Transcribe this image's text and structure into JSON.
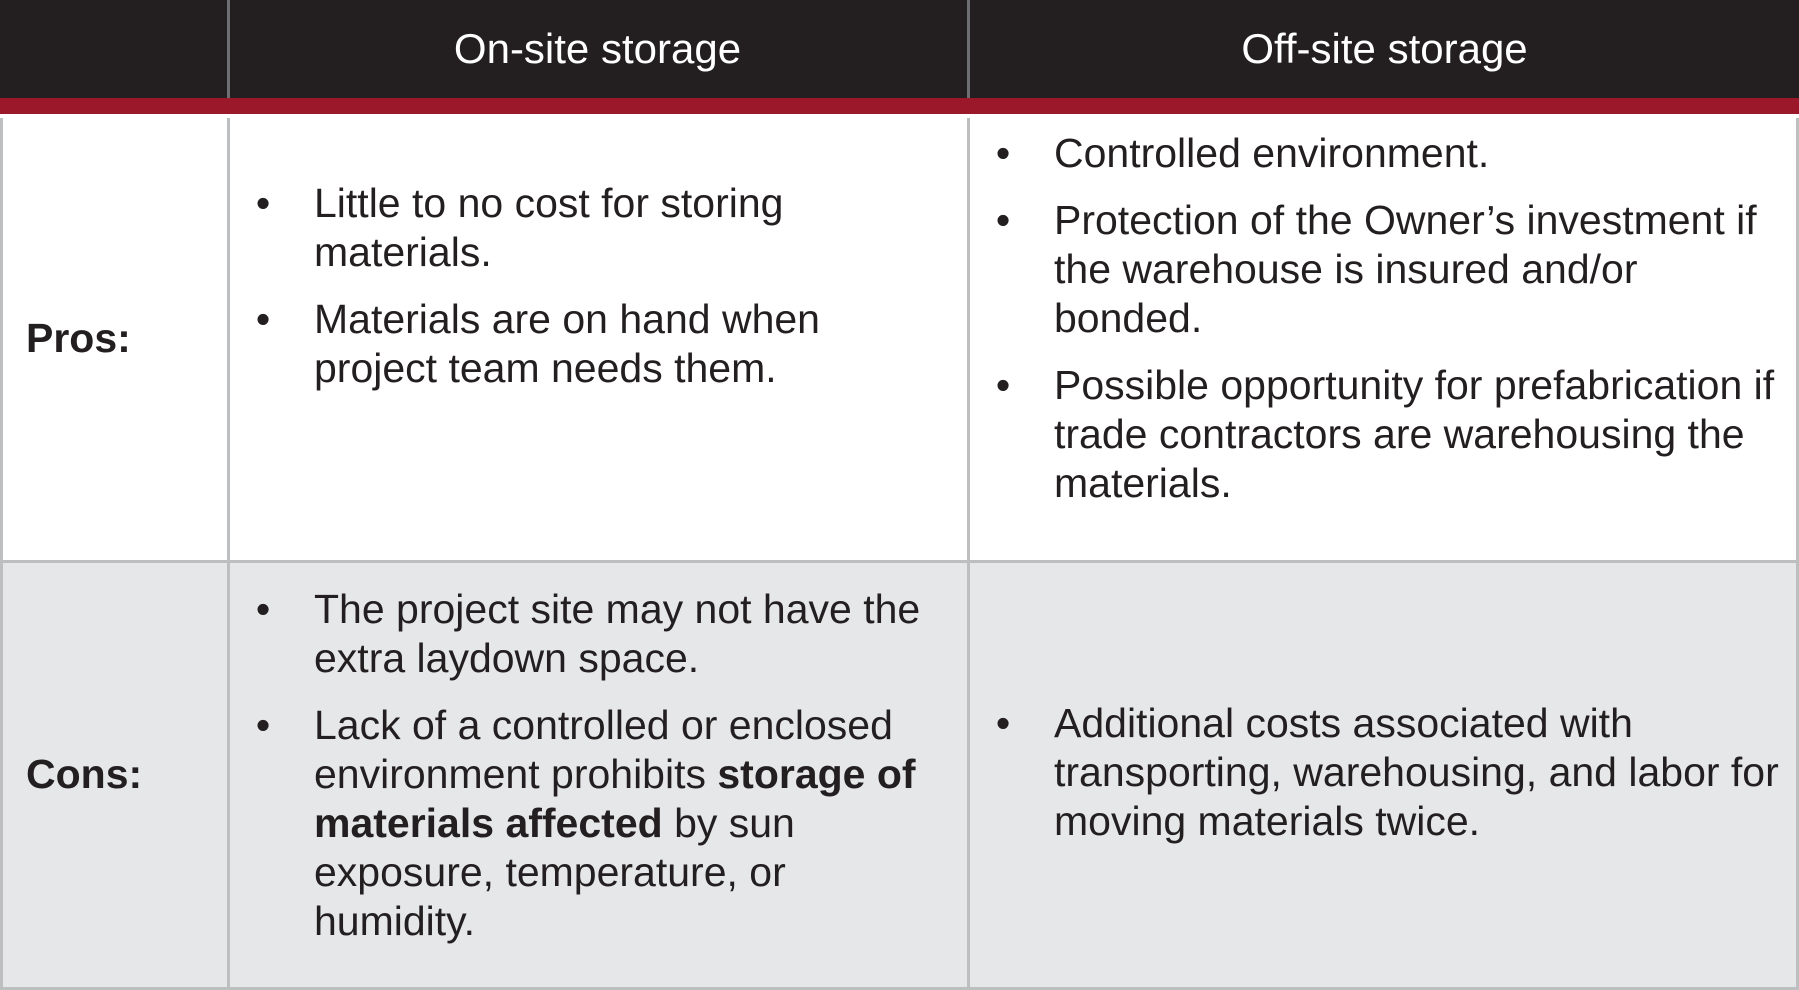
{
  "headers": {
    "col1": "",
    "col2": "On-site storage",
    "col3": "Off-site storage"
  },
  "rows": [
    {
      "label": "Pros:",
      "onsite": [
        {
          "text": "Little to no cost for storing materials."
        },
        {
          "text": "Materials are on hand when project team needs them."
        }
      ],
      "offsite": [
        {
          "text": "Controlled environment."
        },
        {
          "text": "Protection of the Owner’s investment if the warehouse is insured and/or bonded."
        },
        {
          "text": "Possible opportunity for prefabrication if trade contractors are warehousing the materials."
        }
      ]
    },
    {
      "label": "Cons:",
      "onsite": [
        {
          "text": "The project site may not have the extra laydown space."
        },
        {
          "before": "Lack of a controlled or enclosed environment prohibits ",
          "bold": "storage of materials affected",
          "after": " by sun exposure, temperature, or humidity."
        }
      ],
      "offsite": [
        {
          "text": "Additional costs associated with transporting, warehousing, and labor for moving materials twice."
        }
      ]
    }
  ],
  "colors": {
    "header_bg": "#231f20",
    "accent_band": "#9a1829",
    "cons_row_bg": "#e6e7e8",
    "grid": "#bcbec0"
  }
}
